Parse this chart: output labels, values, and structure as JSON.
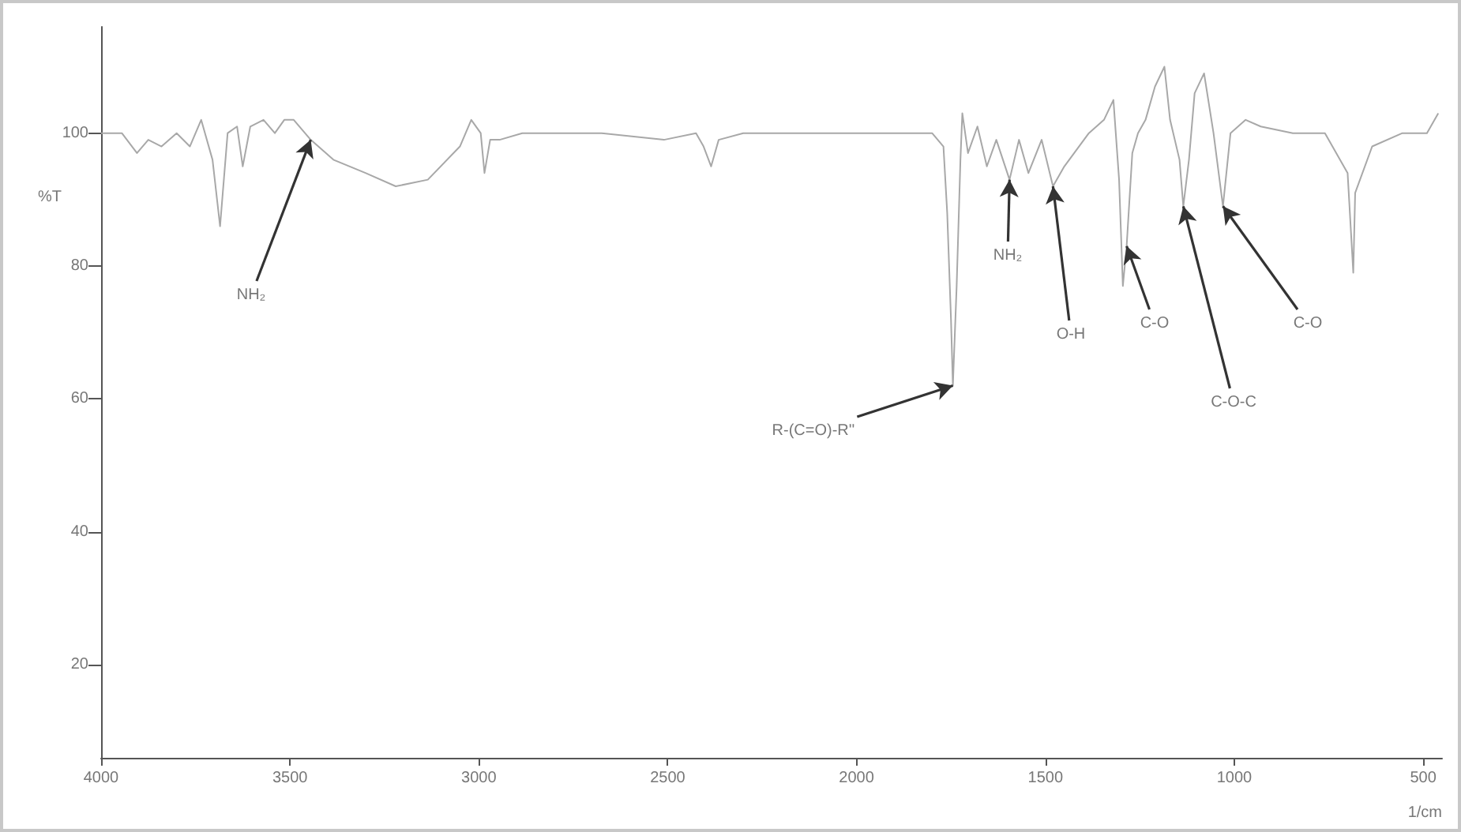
{
  "chart_data": {
    "type": "line",
    "xlabel": "1/cm",
    "ylabel": "%T",
    "x": [
      4000,
      3945,
      3905,
      3875,
      3840,
      3800,
      3765,
      3735,
      3705,
      3685,
      3665,
      3640,
      3625,
      3605,
      3570,
      3540,
      3515,
      3490,
      3445,
      3385,
      3300,
      3220,
      3135,
      3050,
      3020,
      2995,
      2985,
      2970,
      2945,
      2885,
      2800,
      2675,
      2510,
      2425,
      2405,
      2385,
      2365,
      2300,
      2095,
      1925,
      1800,
      1770,
      1760,
      1750,
      1745,
      1735,
      1725,
      1720,
      1705,
      1680,
      1655,
      1630,
      1595,
      1570,
      1545,
      1510,
      1480,
      1450,
      1385,
      1345,
      1320,
      1305,
      1295,
      1285,
      1270,
      1255,
      1235,
      1210,
      1185,
      1170,
      1145,
      1135,
      1120,
      1105,
      1080,
      1055,
      1030,
      1010,
      970,
      930,
      845,
      760,
      700,
      685,
      680,
      635,
      555,
      490,
      460
    ],
    "series": [
      {
        "color": "#a8a8a8",
        "values": [
          100,
          100,
          97,
          99,
          98,
          100,
          98,
          102,
          96,
          86,
          100,
          101,
          95,
          101,
          102,
          100,
          102,
          102,
          99,
          96,
          94,
          92,
          93,
          98,
          102,
          100,
          94,
          99,
          99,
          100,
          100,
          100,
          99,
          100,
          98,
          95,
          99,
          100,
          100,
          100,
          100,
          98,
          88,
          72,
          62,
          77,
          96,
          103,
          97,
          101,
          95,
          99,
          93,
          99,
          94,
          99,
          92,
          95,
          100,
          102,
          105,
          93,
          77,
          83,
          97,
          100,
          102,
          107,
          110,
          102,
          96,
          89,
          96,
          106,
          109,
          100,
          89,
          100,
          102,
          101,
          100,
          100,
          94,
          79,
          91,
          98,
          100,
          100,
          103
        ]
      }
    ],
    "xlim": [
      4000,
      450
    ],
    "xticks": [
      4000,
      3500,
      3000,
      2500,
      2000,
      1500,
      1000,
      500
    ],
    "ylim": [
      6,
      116
    ],
    "yticks": [
      20,
      40,
      60,
      80,
      100
    ],
    "grid": false,
    "annotations": [
      {
        "text": "NH₂",
        "x": 3445,
        "y": 99
      },
      {
        "text": "R-(C=O)-R''",
        "x": 1745,
        "y": 62
      },
      {
        "text": "NH₂",
        "x": 1595,
        "y": 93
      },
      {
        "text": "O-H",
        "x": 1480,
        "y": 92
      },
      {
        "text": "C-O",
        "x": 1285,
        "y": 83
      },
      {
        "text": "C-O-C",
        "x": 1135,
        "y": 89
      },
      {
        "text": "C-O",
        "x": 1030,
        "y": 89
      }
    ]
  }
}
